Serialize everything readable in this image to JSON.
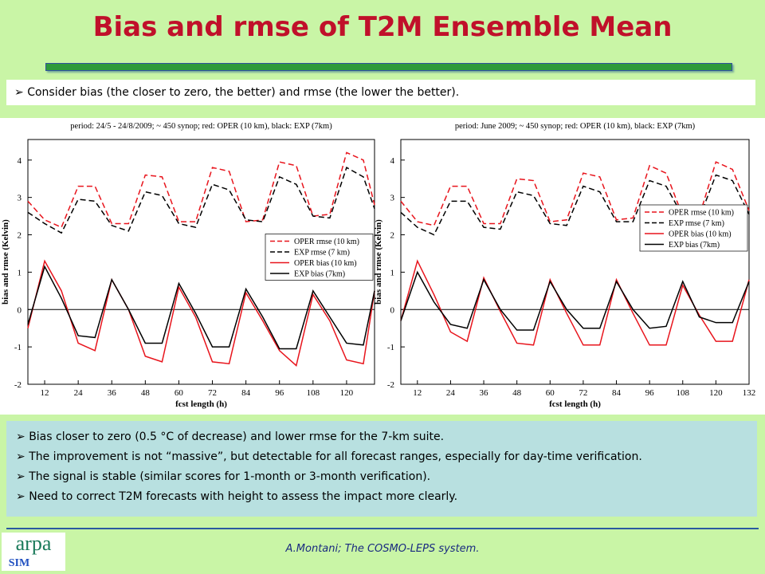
{
  "title": "Bias and rmse of T2M Ensemble Mean",
  "intro": "Consider bias (the closer to zero, the better) and rmse (the lower the better).",
  "bullets": [
    "Bias closer to zero (0.5 °C of decrease) and lower rmse for the 7-km suite.",
    "The improvement is not “massive”, but detectable for all forecast ranges, especially for day-time verification.",
    "The signal is stable (similar scores for 1-month or 3-month verification).",
    "Need to correct T2M forecasts with height to assess the impact more clearly."
  ],
  "footer": "A.Montani; The COSMO-LEPS system.",
  "logo": {
    "top": "arpa",
    "bottom": "SIM"
  },
  "chart_data": [
    {
      "type": "line",
      "title": "period: 24/5 - 24/8/2009; ~ 450 synop; red: OPER (10 km), black: EXP (7km)",
      "x_label": "fcst length (h)",
      "y_label": "bias and rmse (Kelvin)",
      "x": [
        6,
        12,
        18,
        24,
        30,
        36,
        42,
        48,
        54,
        60,
        66,
        72,
        78,
        84,
        90,
        96,
        102,
        108,
        114,
        120,
        126,
        130
      ],
      "xlim": [
        6,
        130
      ],
      "xticks": [
        12,
        24,
        36,
        48,
        60,
        72,
        84,
        96,
        108,
        120
      ],
      "ylim": [
        -2,
        4.55
      ],
      "yticks": [
        -2,
        -1,
        0,
        1,
        2,
        3,
        4
      ],
      "hline": 0,
      "legend": "center right",
      "series": [
        {
          "name": "OPER rmse (10 km)",
          "color": "#e8141c",
          "style": "dashed",
          "values": [
            2.9,
            2.4,
            2.2,
            3.3,
            3.3,
            2.3,
            2.3,
            3.6,
            3.55,
            2.35,
            2.35,
            3.8,
            3.7,
            2.35,
            2.4,
            3.95,
            3.85,
            2.5,
            2.55,
            4.2,
            4.0,
            2.8
          ]
        },
        {
          "name": "EXP rmse (7 km)",
          "color": "#000000",
          "style": "dashed",
          "values": [
            2.6,
            2.3,
            2.05,
            2.95,
            2.9,
            2.25,
            2.1,
            3.15,
            3.05,
            2.3,
            2.2,
            3.35,
            3.2,
            2.4,
            2.35,
            3.55,
            3.35,
            2.5,
            2.45,
            3.8,
            3.55,
            2.7
          ]
        },
        {
          "name": "OPER bias (10 km)",
          "color": "#e8141c",
          "style": "solid",
          "values": [
            -0.5,
            1.3,
            0.5,
            -0.9,
            -1.1,
            0.8,
            0.0,
            -1.25,
            -1.4,
            0.6,
            -0.2,
            -1.4,
            -1.45,
            0.45,
            -0.3,
            -1.1,
            -1.5,
            0.4,
            -0.3,
            -1.35,
            -1.45,
            0.5
          ]
        },
        {
          "name": "EXP bias (7km)",
          "color": "#000000",
          "style": "solid",
          "values": [
            -0.4,
            1.15,
            0.3,
            -0.7,
            -0.75,
            0.8,
            0.0,
            -0.9,
            -0.9,
            0.7,
            -0.1,
            -1.0,
            -1.0,
            0.55,
            -0.2,
            -1.05,
            -1.05,
            0.5,
            -0.2,
            -0.9,
            -0.95,
            0.5
          ]
        }
      ]
    },
    {
      "type": "line",
      "title": "period: June 2009; ~ 450 synop; red: OPER (10 km), black: EXP (7km)",
      "x_label": "fcst length (h)",
      "y_label": "bias and rmse (Kelvin)",
      "x": [
        6,
        12,
        18,
        24,
        30,
        36,
        42,
        48,
        54,
        60,
        66,
        72,
        78,
        84,
        90,
        96,
        102,
        108,
        114,
        120,
        126,
        132
      ],
      "xlim": [
        6,
        132
      ],
      "xticks": [
        12,
        24,
        36,
        48,
        60,
        72,
        84,
        96,
        108,
        120,
        132
      ],
      "ylim": [
        -2,
        4.55
      ],
      "yticks": [
        -2,
        -1,
        0,
        1,
        2,
        3,
        4
      ],
      "hline": 0,
      "legend": "upper right",
      "series": [
        {
          "name": "OPER rmse (10 km)",
          "color": "#e8141c",
          "style": "dashed",
          "values": [
            2.9,
            2.35,
            2.25,
            3.3,
            3.3,
            2.3,
            2.3,
            3.5,
            3.45,
            2.35,
            2.4,
            3.65,
            3.55,
            2.4,
            2.45,
            3.85,
            3.65,
            2.5,
            2.5,
            3.95,
            3.75,
            2.65
          ]
        },
        {
          "name": "EXP rmse (7 km)",
          "color": "#000000",
          "style": "dashed",
          "values": [
            2.6,
            2.2,
            2.0,
            2.9,
            2.9,
            2.2,
            2.15,
            3.15,
            3.05,
            2.3,
            2.25,
            3.3,
            3.15,
            2.35,
            2.35,
            3.45,
            3.3,
            2.5,
            2.45,
            3.6,
            3.45,
            2.55
          ]
        },
        {
          "name": "OPER bias (10 km)",
          "color": "#e8141c",
          "style": "solid",
          "values": [
            -0.3,
            1.3,
            0.4,
            -0.6,
            -0.85,
            0.85,
            -0.05,
            -0.9,
            -0.95,
            0.8,
            -0.1,
            -0.95,
            -0.95,
            0.8,
            -0.1,
            -0.95,
            -0.95,
            0.65,
            -0.15,
            -0.85,
            -0.85,
            0.8
          ]
        },
        {
          "name": "EXP bias (7km)",
          "color": "#000000",
          "style": "solid",
          "values": [
            -0.3,
            1.0,
            0.2,
            -0.4,
            -0.5,
            0.8,
            0.0,
            -0.55,
            -0.55,
            0.75,
            0.0,
            -0.5,
            -0.5,
            0.75,
            0.0,
            -0.5,
            -0.45,
            0.75,
            -0.2,
            -0.35,
            -0.35,
            0.75
          ]
        }
      ]
    }
  ]
}
